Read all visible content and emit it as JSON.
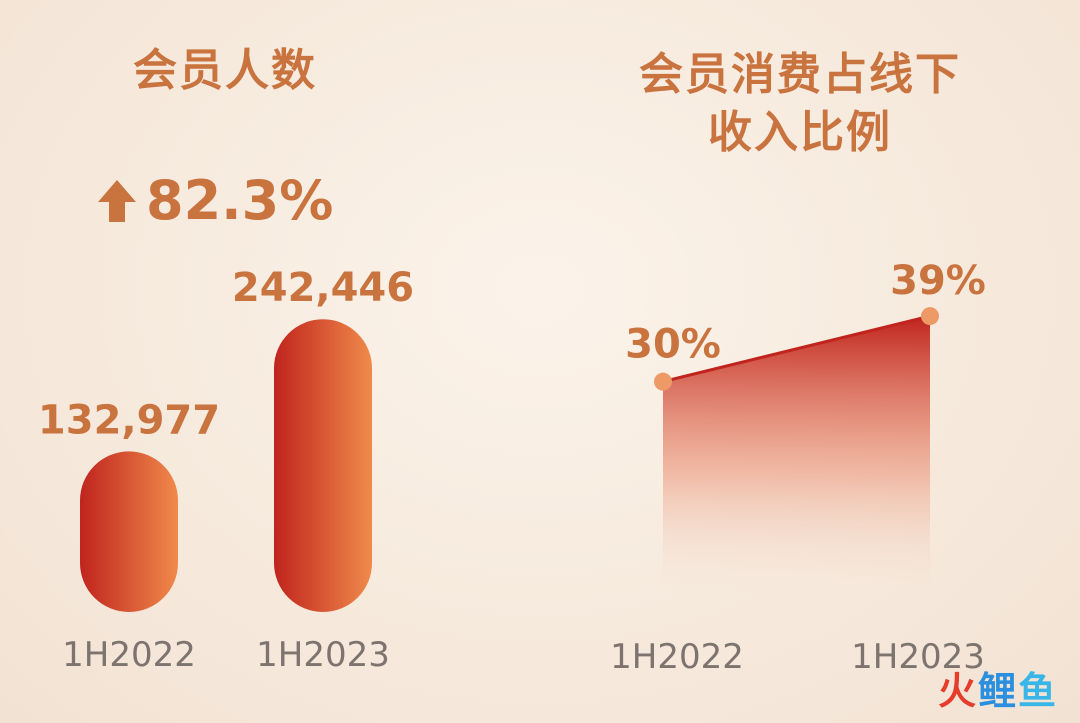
{
  "chart_data": [
    {
      "type": "bar",
      "title": "会员人数",
      "growth_label": "82.3%",
      "categories": [
        "1H2022",
        "1H2023"
      ],
      "values": [
        132977,
        242446
      ],
      "value_labels": [
        "132,977",
        "242,446"
      ],
      "ylim": [
        0,
        265000
      ],
      "colors": [
        "#c0241d",
        "#f08a4b"
      ]
    },
    {
      "type": "area",
      "title_lines": [
        "会员消费占线下",
        "收入比例"
      ],
      "categories": [
        "1H2022",
        "1H2023"
      ],
      "values": [
        30,
        39
      ],
      "value_labels": [
        "30%",
        "39%"
      ],
      "ylim": [
        0,
        43
      ],
      "colors": [
        "#c0241d",
        "#f3a070"
      ]
    }
  ],
  "watermark": [
    "火",
    "鲤",
    "鱼"
  ]
}
